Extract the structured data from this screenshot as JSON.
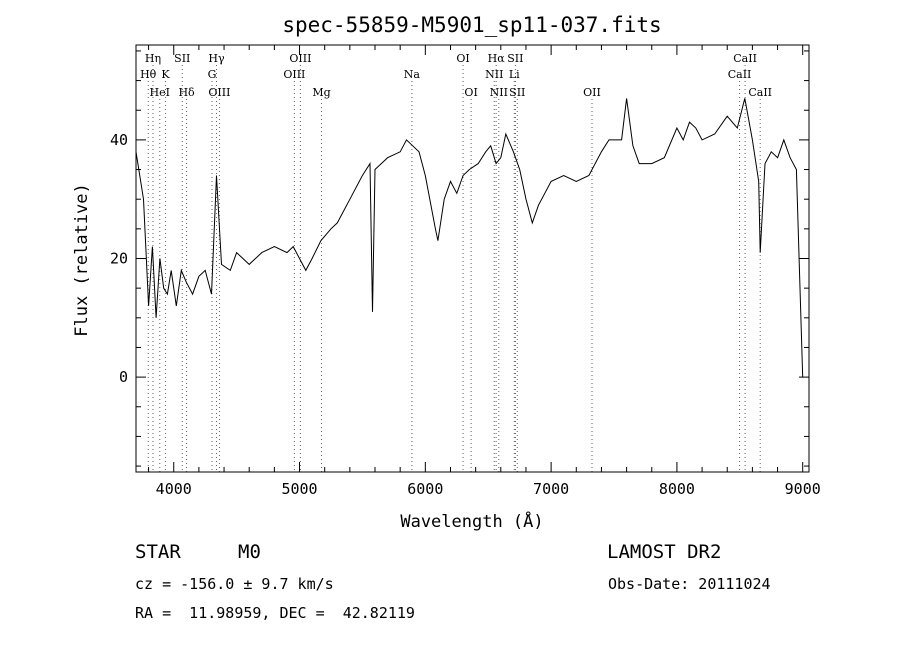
{
  "chart_data": {
    "type": "line",
    "title": "spec-55859-M5901_sp11-037.fits",
    "xlabel": "Wavelength (Å)",
    "ylabel": "Flux (relative)",
    "xlim": [
      3700,
      9050
    ],
    "ylim": [
      -16,
      56
    ],
    "xticks": [
      4000,
      5000,
      6000,
      7000,
      8000,
      9000
    ],
    "yticks": [
      0,
      20,
      40
    ],
    "grid": false,
    "line_color": "#000000",
    "marker_color": "#cc3333",
    "series": [
      {
        "x": [
          3700,
          3760,
          3800,
          3830,
          3860,
          3890,
          3920,
          3950,
          3980,
          4020,
          4060,
          4100,
          4150,
          4200,
          4250,
          4300,
          4340,
          4380,
          4450,
          4500,
          4600,
          4700,
          4800,
          4900,
          4950,
          5000,
          5050,
          5100,
          5170,
          5250,
          5300,
          5400,
          5500,
          5560,
          5580,
          5600,
          5700,
          5800,
          5850,
          5900,
          5950,
          6000,
          6080,
          6100,
          6150,
          6200,
          6250,
          6300,
          6350,
          6420,
          6480,
          6520,
          6563,
          6600,
          6640,
          6700,
          6750,
          6800,
          6850,
          6900,
          6950,
          7000,
          7100,
          7200,
          7300,
          7400,
          7460,
          7500,
          7560,
          7600,
          7650,
          7700,
          7800,
          7900,
          8000,
          8050,
          8100,
          8150,
          8200,
          8300,
          8400,
          8480,
          8540,
          8600,
          8650,
          8662,
          8700,
          8750,
          8800,
          8850,
          8900,
          8950,
          9000
        ],
        "y": [
          38,
          30,
          12,
          22,
          10,
          20,
          15,
          14,
          18,
          12,
          18,
          16,
          14,
          17,
          18,
          14,
          34,
          19,
          18,
          21,
          19,
          21,
          22,
          21,
          22,
          20,
          18,
          20,
          23,
          25,
          26,
          30,
          34,
          36,
          11,
          35,
          37,
          38,
          40,
          39,
          38,
          34,
          25,
          23,
          30,
          33,
          31,
          34,
          35,
          36,
          38,
          39,
          36,
          37,
          41,
          38,
          35,
          30,
          26,
          29,
          31,
          33,
          34,
          33,
          34,
          38,
          40,
          40,
          40,
          47,
          39,
          36,
          36,
          37,
          42,
          40,
          43,
          42,
          40,
          41,
          44,
          42,
          47,
          40,
          33,
          21,
          36,
          38,
          37,
          40,
          37,
          35,
          0
        ]
      }
    ],
    "annotations": [
      {
        "label": "Hη",
        "x": 3835,
        "row": 1
      },
      {
        "label": "Hθ",
        "x": 3797,
        "row": 2
      },
      {
        "label": "K",
        "x": 3934,
        "row": 2
      },
      {
        "label": "HeI",
        "x": 3889,
        "row": 3
      },
      {
        "label": "SII",
        "x": 4068,
        "row": 1
      },
      {
        "label": "Hδ",
        "x": 4102,
        "row": 3
      },
      {
        "label": "Hγ",
        "x": 4340,
        "row": 1
      },
      {
        "label": "G",
        "x": 4304,
        "row": 2
      },
      {
        "label": "OIII",
        "x": 4363,
        "row": 3
      },
      {
        "label": "OIII",
        "x": 5007,
        "row": 1
      },
      {
        "label": "OIII",
        "x": 4959,
        "row": 2
      },
      {
        "label": "Mg",
        "x": 5175,
        "row": 3
      },
      {
        "label": "Na",
        "x": 5893,
        "row": 2
      },
      {
        "label": "OI",
        "x": 6300,
        "row": 1
      },
      {
        "label": "OI",
        "x": 6364,
        "row": 3
      },
      {
        "label": "Hα",
        "x": 6563,
        "row": 1
      },
      {
        "label": "SII",
        "x": 6716,
        "row": 1
      },
      {
        "label": "NII",
        "x": 6548,
        "row": 2
      },
      {
        "label": "Li",
        "x": 6707,
        "row": 2
      },
      {
        "label": "NII",
        "x": 6584,
        "row": 3
      },
      {
        "label": "SII",
        "x": 6731,
        "row": 3
      },
      {
        "label": "OII",
        "x": 7325,
        "row": 3
      },
      {
        "label": "CaII",
        "x": 8542,
        "row": 1
      },
      {
        "label": "CaII",
        "x": 8498,
        "row": 2
      },
      {
        "label": "CaII",
        "x": 8662,
        "row": 3
      }
    ]
  },
  "info": {
    "object_class": "STAR",
    "subclass": "M0",
    "survey": "LAMOST DR2",
    "cz": "cz = -156.0 ± 9.7 km/s",
    "obs_date": "Obs-Date: 20111024",
    "coords": "RA =  11.98959, DEC =  42.82119"
  }
}
